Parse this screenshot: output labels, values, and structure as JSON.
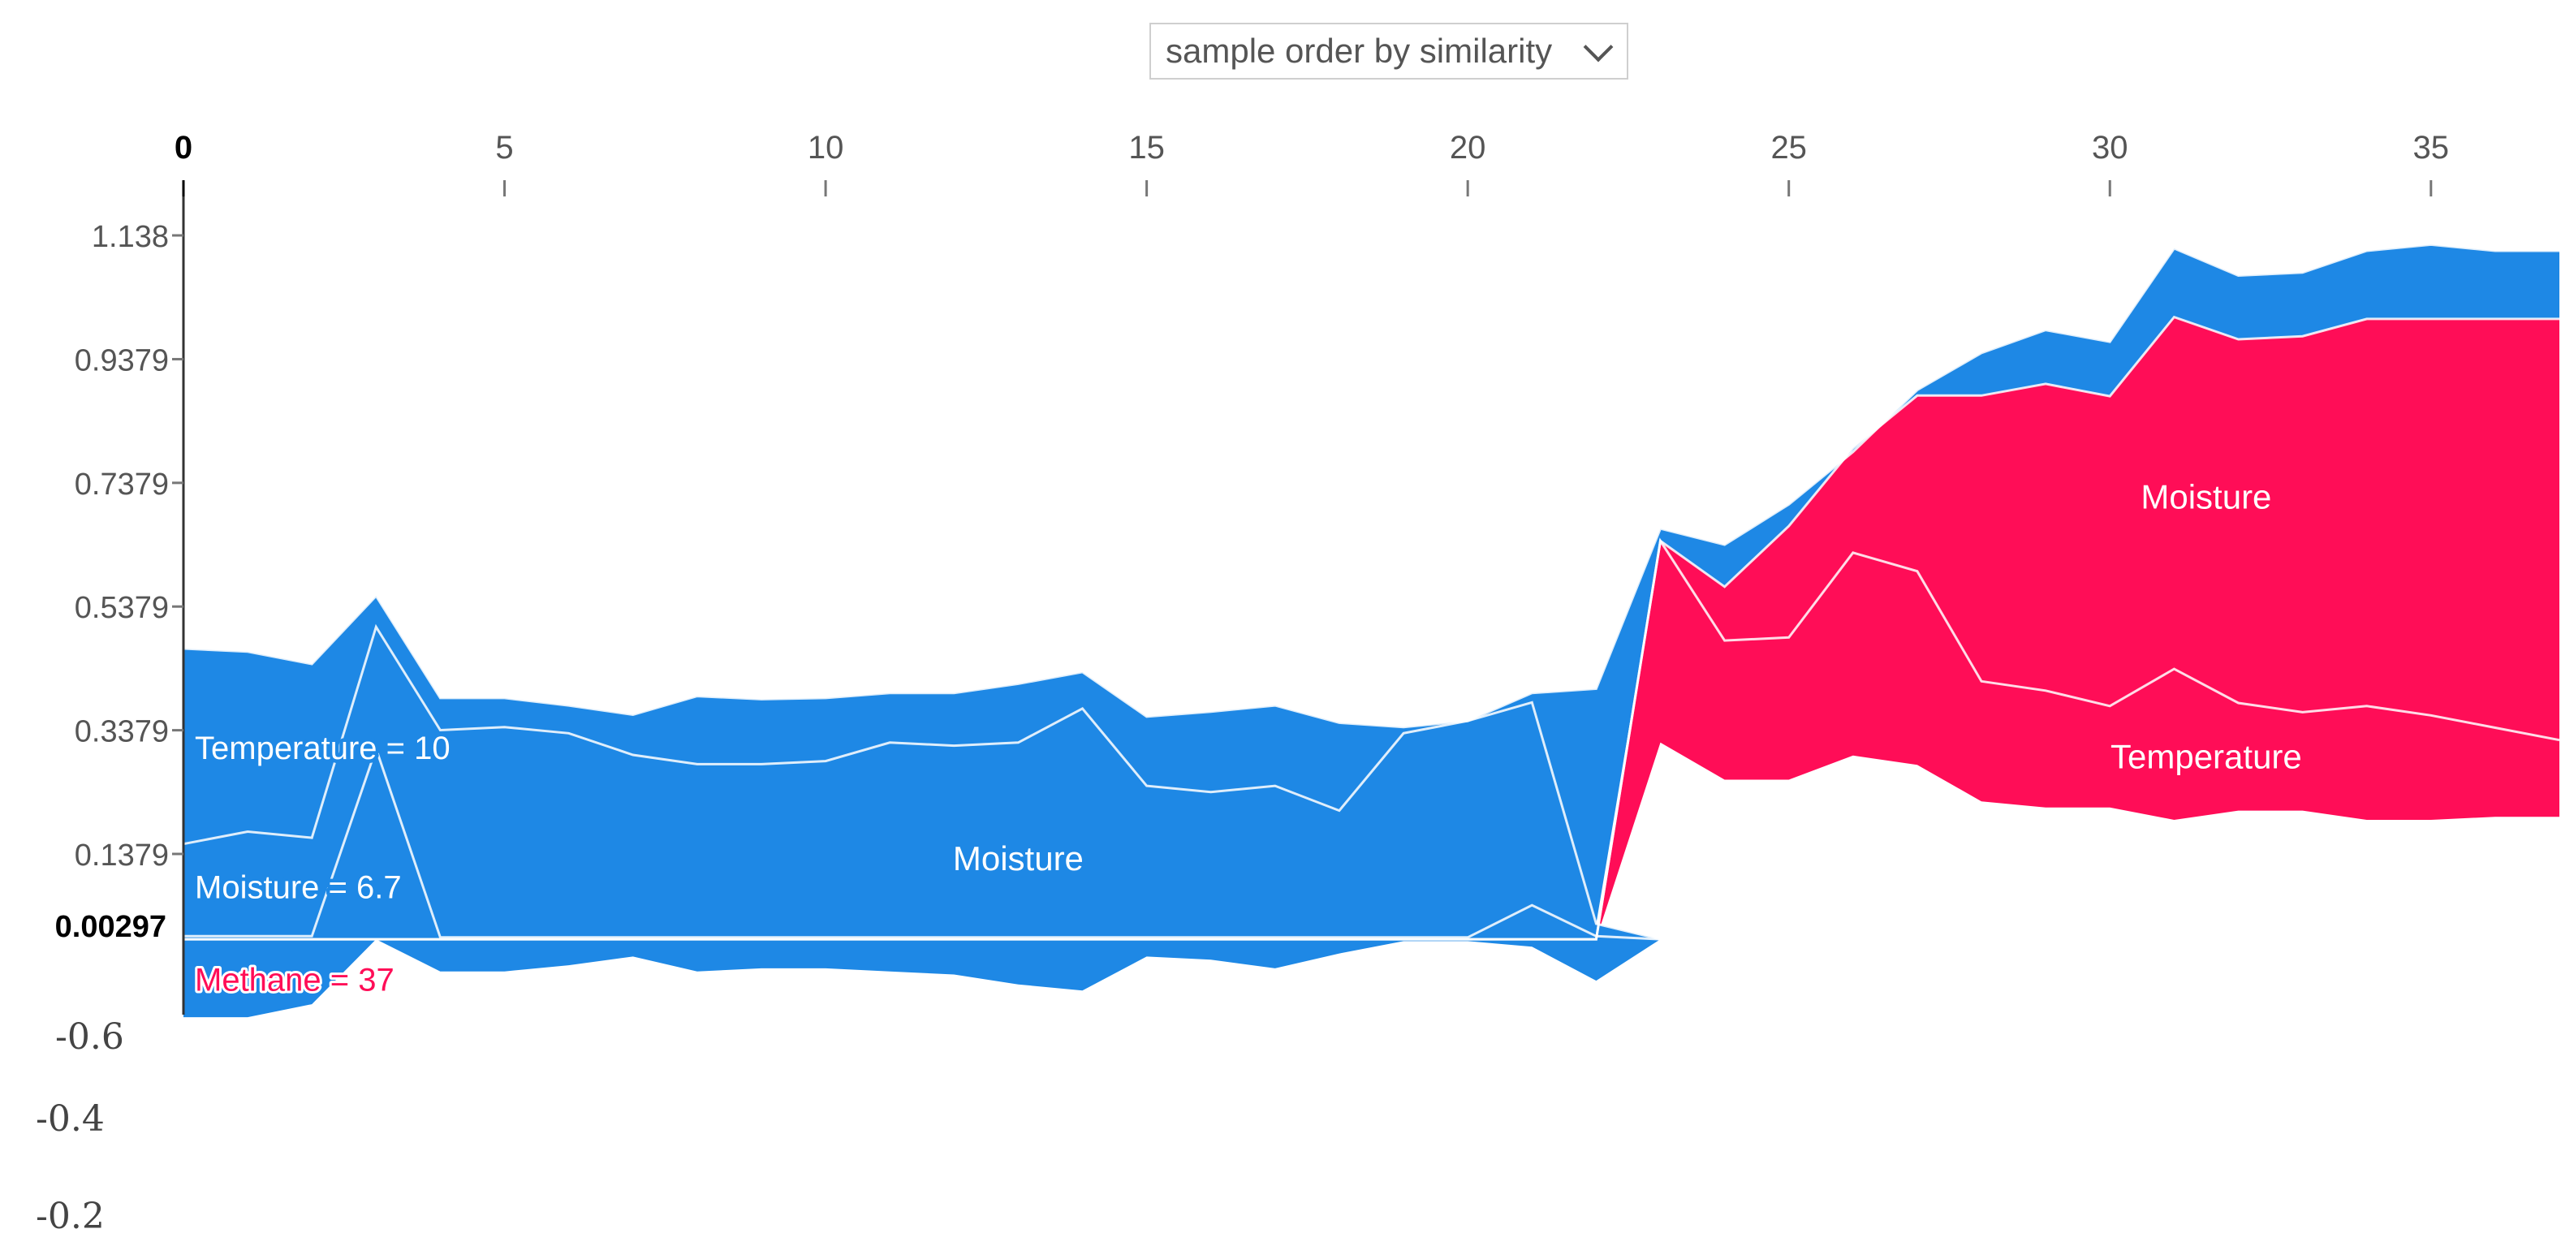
{
  "controls": {
    "sample_order_select": {
      "selected": "sample order by similarity"
    }
  },
  "colors": {
    "positive": "#ff0d57",
    "negative": "#1e88e5",
    "divider": "#ffffff",
    "tick_text": "#555555",
    "base_value_text": "#000000"
  },
  "chart_data": {
    "type": "area",
    "title": "",
    "xlabel": "",
    "ylabel": "",
    "x_ticks": [
      0,
      5,
      10,
      15,
      20,
      25,
      30,
      35
    ],
    "xlim": [
      0,
      37
    ],
    "y_ticks": [
      {
        "value": 1.138,
        "label": "1.138"
      },
      {
        "value": 0.9379,
        "label": "0.9379"
      },
      {
        "value": 0.7379,
        "label": "0.7379"
      },
      {
        "value": 0.5379,
        "label": "0.5379"
      },
      {
        "value": 0.3379,
        "label": "0.3379"
      },
      {
        "value": 0.1379,
        "label": "0.1379"
      }
    ],
    "base_value": {
      "value": 0.00297,
      "label": "0.00297"
    },
    "extra_axis_labels": [
      "-0.6",
      "-0.4",
      "-0.2"
    ],
    "ylim": [
      -0.136,
      1.26
    ],
    "x": [
      0,
      1,
      2,
      3,
      4,
      5,
      6,
      7,
      8,
      9,
      10,
      11,
      12,
      13,
      14,
      15,
      16,
      17,
      18,
      19,
      20,
      21,
      22,
      23,
      24,
      25,
      26,
      27,
      28,
      29,
      30,
      31,
      32,
      33,
      34,
      35,
      36,
      37
    ],
    "series": [
      {
        "name": "Methane",
        "sign": "negative_push",
        "bottom": [
          -0.126,
          -0.126,
          -0.105,
          0.0,
          -0.052,
          -0.052,
          -0.042,
          -0.028,
          -0.052,
          -0.047,
          -0.047,
          -0.052,
          -0.057,
          -0.073,
          -0.083,
          -0.028,
          -0.033,
          -0.047,
          -0.023,
          -0.003,
          -0.003,
          -0.012,
          -0.067,
          0.0,
          0.0,
          0.0,
          0.0,
          0.0,
          0.0,
          0.0,
          0.0,
          0.0,
          0.0,
          0.0,
          0.0,
          0.0,
          0.0,
          0.0
        ],
        "top": [
          0.005,
          0.005,
          0.005,
          0.308,
          0.003,
          0.003,
          0.003,
          0.003,
          0.003,
          0.003,
          0.003,
          0.003,
          0.003,
          0.003,
          0.003,
          0.003,
          0.003,
          0.003,
          0.003,
          0.003,
          0.003,
          0.055,
          0.005,
          0.0,
          0.0,
          0.0,
          0.0,
          0.0,
          0.0,
          0.0,
          0.0,
          0.0,
          0.0,
          0.0,
          0.0,
          0.0,
          0.0,
          0.0
        ]
      },
      {
        "name": "Temperature",
        "sign": "positive_push",
        "bottom": [
          0.0,
          0.0,
          0.0,
          0.0,
          0.0,
          0.0,
          0.0,
          0.0,
          0.0,
          0.0,
          0.0,
          0.0,
          0.0,
          0.0,
          0.0,
          0.0,
          0.0,
          0.0,
          0.0,
          0.0,
          0.0,
          0.0,
          0.0,
          0.318,
          0.258,
          0.258,
          0.297,
          0.282,
          0.223,
          0.213,
          0.213,
          0.193,
          0.208,
          0.208,
          0.193,
          0.193,
          0.198,
          0.198
        ],
        "top": [
          0.0,
          0.0,
          0.0,
          0.0,
          0.0,
          0.0,
          0.0,
          0.0,
          0.0,
          0.0,
          0.0,
          0.0,
          0.0,
          0.0,
          0.0,
          0.0,
          0.0,
          0.0,
          0.0,
          0.0,
          0.0,
          0.0,
          0.0,
          0.644,
          0.483,
          0.488,
          0.625,
          0.595,
          0.417,
          0.402,
          0.377,
          0.437,
          0.382,
          0.367,
          0.377,
          0.362,
          0.342,
          0.322
        ]
      },
      {
        "name": "Moisture",
        "sign": "positive_push",
        "bottom": [
          0.0,
          0.0,
          0.0,
          0.0,
          0.0,
          0.0,
          0.0,
          0.0,
          0.0,
          0.0,
          0.0,
          0.0,
          0.0,
          0.0,
          0.0,
          0.0,
          0.0,
          0.0,
          0.0,
          0.0,
          0.0,
          0.0,
          0.0,
          0.644,
          0.483,
          0.488,
          0.625,
          0.595,
          0.417,
          0.402,
          0.377,
          0.437,
          0.382,
          0.367,
          0.377,
          0.362,
          0.342,
          0.322
        ],
        "top": [
          0.0,
          0.0,
          0.0,
          0.0,
          0.0,
          0.0,
          0.0,
          0.0,
          0.0,
          0.0,
          0.0,
          0.0,
          0.0,
          0.0,
          0.0,
          0.0,
          0.0,
          0.0,
          0.0,
          0.0,
          0.0,
          0.0,
          0.0,
          0.644,
          0.57,
          0.668,
          0.794,
          0.879,
          0.879,
          0.898,
          0.878,
          1.006,
          0.97,
          0.975,
          1.003,
          1.003,
          1.003,
          1.003
        ]
      },
      {
        "name": "Moisture_negative",
        "sign": "negative_push",
        "bottom": [
          0.005,
          0.005,
          0.005,
          0.308,
          0.003,
          0.003,
          0.003,
          0.003,
          0.003,
          0.003,
          0.003,
          0.003,
          0.003,
          0.003,
          0.003,
          0.003,
          0.003,
          0.003,
          0.003,
          0.003,
          0.003,
          0.055,
          0.005,
          0.0,
          0.0,
          0.0,
          0.0,
          0.0,
          0.0,
          0.0,
          0.0,
          0.0,
          0.0,
          0.0,
          0.0,
          0.0,
          0.0,
          0.0
        ],
        "top": [
          0.154,
          0.174,
          0.164,
          0.505,
          0.338,
          0.343,
          0.333,
          0.298,
          0.283,
          0.283,
          0.288,
          0.318,
          0.313,
          0.318,
          0.373,
          0.248,
          0.238,
          0.248,
          0.208,
          0.333,
          0.353,
          0.383,
          0.025,
          0.0,
          0.0,
          0.0,
          0.0,
          0.0,
          0.0,
          0.0,
          0.0,
          0.0,
          0.0,
          0.0,
          0.0,
          0.0,
          0.0,
          0.0
        ]
      },
      {
        "name": "Temperature_negative",
        "sign": "negative_push",
        "bottom": [
          0.154,
          0.174,
          0.164,
          0.505,
          0.338,
          0.343,
          0.333,
          0.298,
          0.283,
          0.283,
          0.288,
          0.318,
          0.313,
          0.318,
          0.373,
          0.248,
          0.238,
          0.248,
          0.208,
          0.333,
          0.353,
          0.383,
          0.025,
          0.644,
          0.57,
          0.668,
          0.794,
          0.879,
          0.879,
          0.898,
          0.878,
          1.006,
          0.97,
          0.975,
          1.003,
          1.003,
          1.003,
          1.003
        ],
        "top": [
          0.47,
          0.465,
          0.445,
          0.555,
          0.39,
          0.39,
          0.378,
          0.363,
          0.393,
          0.388,
          0.39,
          0.398,
          0.398,
          0.413,
          0.432,
          0.36,
          0.368,
          0.378,
          0.35,
          0.343,
          0.353,
          0.398,
          0.405,
          0.664,
          0.638,
          0.703,
          0.788,
          0.888,
          0.948,
          0.985,
          0.966,
          1.117,
          1.073,
          1.078,
          1.113,
          1.123,
          1.113,
          1.113
        ]
      }
    ],
    "region_labels": [
      {
        "text": "Moisture",
        "x": 13,
        "y": 0.13,
        "placement": "inside negative area"
      },
      {
        "text": "Moisture",
        "x": 31.5,
        "y": 0.715,
        "placement": "inside positive area"
      },
      {
        "text": "Temperature",
        "x": 31.5,
        "y": 0.295,
        "placement": "inside positive area"
      }
    ],
    "feature_labels": [
      {
        "text": "Temperature = 10",
        "color": "negative",
        "y": 0.31
      },
      {
        "text": "Moisture = 6.7",
        "color": "negative",
        "y": 0.085
      },
      {
        "text": "Methane = 37",
        "color": "positive",
        "y": -0.065
      }
    ]
  }
}
